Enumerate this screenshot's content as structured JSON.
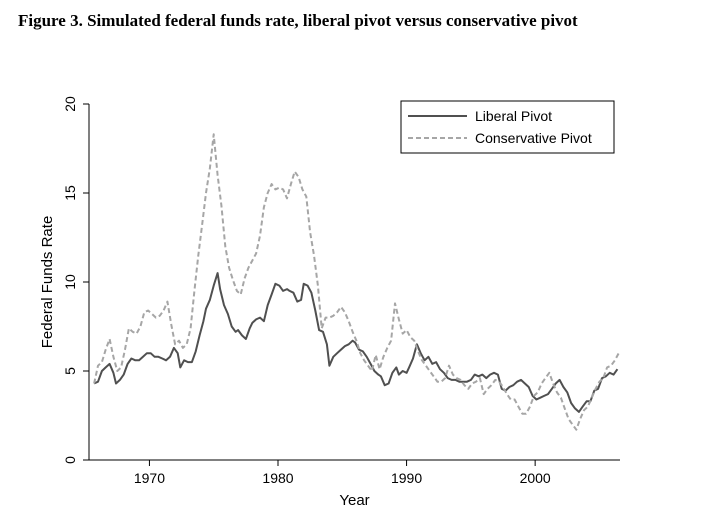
{
  "figure": {
    "title": "Figure 3.  Simulated federal funds rate, liberal pivot versus conservative pivot"
  },
  "chart_data": {
    "type": "line",
    "xlabel": "Year",
    "ylabel": "Federal Funds Rate",
    "xlim": [
      1965.3,
      2006.6
    ],
    "ylim": [
      0,
      20
    ],
    "xticks": [
      1970,
      1980,
      1990,
      2000
    ],
    "yticks": [
      0,
      5,
      10,
      15,
      20
    ],
    "grid": false,
    "legend_position": "top-right",
    "series": [
      {
        "name": "Liberal Pivot",
        "color": "#505050",
        "style": "solid",
        "points": [
          [
            1965.7,
            4.3
          ],
          [
            1966.0,
            4.4
          ],
          [
            1966.3,
            5.0
          ],
          [
            1966.6,
            5.2
          ],
          [
            1966.9,
            5.4
          ],
          [
            1967.2,
            4.9
          ],
          [
            1967.4,
            4.3
          ],
          [
            1967.7,
            4.5
          ],
          [
            1968.0,
            4.8
          ],
          [
            1968.3,
            5.4
          ],
          [
            1968.6,
            5.7
          ],
          [
            1968.9,
            5.6
          ],
          [
            1969.2,
            5.6
          ],
          [
            1969.5,
            5.8
          ],
          [
            1969.8,
            6.0
          ],
          [
            1970.1,
            6.0
          ],
          [
            1970.4,
            5.8
          ],
          [
            1970.7,
            5.8
          ],
          [
            1971.0,
            5.7
          ],
          [
            1971.3,
            5.6
          ],
          [
            1971.6,
            5.8
          ],
          [
            1971.9,
            6.3
          ],
          [
            1972.2,
            6.0
          ],
          [
            1972.4,
            5.2
          ],
          [
            1972.7,
            5.6
          ],
          [
            1973.0,
            5.5
          ],
          [
            1973.3,
            5.5
          ],
          [
            1973.6,
            6.1
          ],
          [
            1973.9,
            7.0
          ],
          [
            1974.2,
            7.8
          ],
          [
            1974.4,
            8.5
          ],
          [
            1974.7,
            9.0
          ],
          [
            1975.0,
            9.8
          ],
          [
            1975.3,
            10.5
          ],
          [
            1975.5,
            9.6
          ],
          [
            1975.8,
            8.7
          ],
          [
            1976.1,
            8.2
          ],
          [
            1976.4,
            7.5
          ],
          [
            1976.7,
            7.2
          ],
          [
            1976.9,
            7.3
          ],
          [
            1977.2,
            7.0
          ],
          [
            1977.5,
            6.8
          ],
          [
            1977.8,
            7.4
          ],
          [
            1978.0,
            7.7
          ],
          [
            1978.3,
            7.9
          ],
          [
            1978.6,
            8.0
          ],
          [
            1978.9,
            7.8
          ],
          [
            1979.2,
            8.7
          ],
          [
            1979.5,
            9.3
          ],
          [
            1979.8,
            9.9
          ],
          [
            1980.1,
            9.8
          ],
          [
            1980.4,
            9.5
          ],
          [
            1980.7,
            9.6
          ],
          [
            1980.9,
            9.5
          ],
          [
            1981.2,
            9.4
          ],
          [
            1981.5,
            8.9
          ],
          [
            1981.8,
            9.0
          ],
          [
            1982.0,
            9.9
          ],
          [
            1982.3,
            9.8
          ],
          [
            1982.6,
            9.4
          ],
          [
            1982.9,
            8.4
          ],
          [
            1983.2,
            7.3
          ],
          [
            1983.5,
            7.2
          ],
          [
            1983.8,
            6.5
          ],
          [
            1984.0,
            5.3
          ],
          [
            1984.3,
            5.8
          ],
          [
            1984.6,
            6.0
          ],
          [
            1984.9,
            6.2
          ],
          [
            1985.2,
            6.4
          ],
          [
            1985.5,
            6.5
          ],
          [
            1985.8,
            6.7
          ],
          [
            1986.0,
            6.6
          ],
          [
            1986.3,
            6.2
          ],
          [
            1986.6,
            6.1
          ],
          [
            1986.9,
            5.8
          ],
          [
            1987.2,
            5.4
          ],
          [
            1987.5,
            5.0
          ],
          [
            1987.8,
            4.8
          ],
          [
            1988.0,
            4.7
          ],
          [
            1988.3,
            4.2
          ],
          [
            1988.6,
            4.3
          ],
          [
            1988.9,
            4.9
          ],
          [
            1989.2,
            5.2
          ],
          [
            1989.4,
            4.8
          ],
          [
            1989.7,
            5.0
          ],
          [
            1990.0,
            4.9
          ],
          [
            1990.2,
            5.2
          ],
          [
            1990.5,
            5.7
          ],
          [
            1990.8,
            6.5
          ],
          [
            1991.1,
            6.0
          ],
          [
            1991.4,
            5.6
          ],
          [
            1991.7,
            5.8
          ],
          [
            1992.0,
            5.4
          ],
          [
            1992.3,
            5.5
          ],
          [
            1992.6,
            5.1
          ],
          [
            1992.9,
            4.9
          ],
          [
            1993.2,
            4.6
          ],
          [
            1993.5,
            4.5
          ],
          [
            1993.8,
            4.5
          ],
          [
            1994.1,
            4.4
          ],
          [
            1994.4,
            4.4
          ],
          [
            1994.7,
            4.4
          ],
          [
            1995.0,
            4.5
          ],
          [
            1995.3,
            4.8
          ],
          [
            1995.6,
            4.7
          ],
          [
            1995.9,
            4.8
          ],
          [
            1996.2,
            4.6
          ],
          [
            1996.5,
            4.8
          ],
          [
            1996.8,
            4.9
          ],
          [
            1997.1,
            4.8
          ],
          [
            1997.4,
            4.0
          ],
          [
            1997.7,
            3.9
          ],
          [
            1998.0,
            4.1
          ],
          [
            1998.3,
            4.2
          ],
          [
            1998.6,
            4.4
          ],
          [
            1998.9,
            4.5
          ],
          [
            1999.2,
            4.3
          ],
          [
            1999.5,
            4.1
          ],
          [
            1999.8,
            3.6
          ],
          [
            2000.1,
            3.4
          ],
          [
            2000.4,
            3.5
          ],
          [
            2000.7,
            3.6
          ],
          [
            2001.0,
            3.7
          ],
          [
            2001.3,
            4.0
          ],
          [
            2001.6,
            4.3
          ],
          [
            2001.9,
            4.5
          ],
          [
            2002.2,
            4.1
          ],
          [
            2002.5,
            3.8
          ],
          [
            2002.8,
            3.2
          ],
          [
            2003.1,
            2.9
          ],
          [
            2003.4,
            2.7
          ],
          [
            2003.7,
            3.0
          ],
          [
            2004.0,
            3.3
          ],
          [
            2004.3,
            3.3
          ],
          [
            2004.6,
            3.9
          ],
          [
            2004.9,
            4.0
          ],
          [
            2005.2,
            4.6
          ],
          [
            2005.5,
            4.7
          ],
          [
            2005.8,
            4.9
          ],
          [
            2006.1,
            4.8
          ],
          [
            2006.4,
            5.1
          ]
        ]
      },
      {
        "name": "Conservative Pivot",
        "color": "#a6a6a6",
        "style": "dashed",
        "points": [
          [
            1965.7,
            4.3
          ],
          [
            1966.0,
            5.3
          ],
          [
            1966.3,
            5.5
          ],
          [
            1966.6,
            6.2
          ],
          [
            1966.9,
            6.8
          ],
          [
            1967.2,
            5.8
          ],
          [
            1967.5,
            5.0
          ],
          [
            1967.8,
            5.2
          ],
          [
            1968.1,
            6.2
          ],
          [
            1968.4,
            7.4
          ],
          [
            1968.7,
            7.2
          ],
          [
            1969.0,
            7.1
          ],
          [
            1969.3,
            7.5
          ],
          [
            1969.6,
            8.3
          ],
          [
            1969.9,
            8.4
          ],
          [
            1970.2,
            8.2
          ],
          [
            1970.5,
            8.0
          ],
          [
            1970.8,
            8.1
          ],
          [
            1971.1,
            8.4
          ],
          [
            1971.4,
            8.9
          ],
          [
            1971.7,
            7.6
          ],
          [
            1972.0,
            6.5
          ],
          [
            1972.3,
            6.7
          ],
          [
            1972.6,
            6.3
          ],
          [
            1972.9,
            6.5
          ],
          [
            1973.2,
            7.4
          ],
          [
            1973.5,
            9.5
          ],
          [
            1973.8,
            11.5
          ],
          [
            1974.1,
            13.2
          ],
          [
            1974.4,
            15.0
          ],
          [
            1974.7,
            16.4
          ],
          [
            1975.0,
            18.3
          ],
          [
            1975.3,
            16.0
          ],
          [
            1975.6,
            14.3
          ],
          [
            1975.9,
            12.0
          ],
          [
            1976.2,
            10.8
          ],
          [
            1976.5,
            10.1
          ],
          [
            1976.8,
            9.5
          ],
          [
            1977.1,
            9.3
          ],
          [
            1977.4,
            10.2
          ],
          [
            1977.7,
            10.8
          ],
          [
            1978.0,
            11.2
          ],
          [
            1978.3,
            11.6
          ],
          [
            1978.6,
            12.6
          ],
          [
            1978.9,
            14.2
          ],
          [
            1979.2,
            15.0
          ],
          [
            1979.5,
            15.5
          ],
          [
            1979.8,
            15.2
          ],
          [
            1980.1,
            15.3
          ],
          [
            1980.4,
            15.2
          ],
          [
            1980.7,
            14.7
          ],
          [
            1981.0,
            15.5
          ],
          [
            1981.3,
            16.2
          ],
          [
            1981.6,
            15.9
          ],
          [
            1981.9,
            15.2
          ],
          [
            1982.2,
            14.8
          ],
          [
            1982.5,
            12.8
          ],
          [
            1982.8,
            11.5
          ],
          [
            1983.1,
            9.8
          ],
          [
            1983.4,
            7.4
          ],
          [
            1983.7,
            8.0
          ],
          [
            1984.0,
            8.0
          ],
          [
            1984.3,
            8.1
          ],
          [
            1984.6,
            8.3
          ],
          [
            1984.9,
            8.6
          ],
          [
            1985.2,
            8.3
          ],
          [
            1985.5,
            7.8
          ],
          [
            1985.8,
            7.2
          ],
          [
            1986.1,
            6.7
          ],
          [
            1986.4,
            6.0
          ],
          [
            1986.7,
            5.6
          ],
          [
            1987.0,
            5.3
          ],
          [
            1987.3,
            5.0
          ],
          [
            1987.6,
            5.9
          ],
          [
            1987.9,
            5.1
          ],
          [
            1988.2,
            5.8
          ],
          [
            1988.5,
            6.3
          ],
          [
            1988.8,
            6.7
          ],
          [
            1989.1,
            8.8
          ],
          [
            1989.4,
            7.9
          ],
          [
            1989.7,
            7.1
          ],
          [
            1990.0,
            7.3
          ],
          [
            1990.3,
            6.9
          ],
          [
            1990.6,
            6.7
          ],
          [
            1990.9,
            6.1
          ],
          [
            1991.2,
            5.6
          ],
          [
            1991.5,
            5.3
          ],
          [
            1991.8,
            5.0
          ],
          [
            1992.1,
            4.7
          ],
          [
            1992.4,
            4.4
          ],
          [
            1992.7,
            4.4
          ],
          [
            1993.0,
            4.6
          ],
          [
            1993.3,
            5.3
          ],
          [
            1993.6,
            4.8
          ],
          [
            1993.9,
            4.6
          ],
          [
            1994.2,
            4.5
          ],
          [
            1994.5,
            4.2
          ],
          [
            1994.8,
            4.0
          ],
          [
            1995.1,
            4.3
          ],
          [
            1995.4,
            4.4
          ],
          [
            1995.7,
            4.6
          ],
          [
            1996.0,
            3.7
          ],
          [
            1996.3,
            4.0
          ],
          [
            1996.6,
            4.2
          ],
          [
            1996.9,
            4.5
          ],
          [
            1997.2,
            4.4
          ],
          [
            1997.5,
            4.1
          ],
          [
            1997.8,
            3.7
          ],
          [
            1998.1,
            3.4
          ],
          [
            1998.4,
            3.4
          ],
          [
            1998.7,
            3.0
          ],
          [
            1999.0,
            2.6
          ],
          [
            1999.3,
            2.6
          ],
          [
            1999.6,
            3.0
          ],
          [
            1999.9,
            3.6
          ],
          [
            2000.2,
            3.8
          ],
          [
            2000.5,
            4.3
          ],
          [
            2000.8,
            4.6
          ],
          [
            2001.1,
            4.9
          ],
          [
            2001.4,
            4.3
          ],
          [
            2001.7,
            3.8
          ],
          [
            2002.0,
            3.5
          ],
          [
            2002.3,
            2.9
          ],
          [
            2002.6,
            2.3
          ],
          [
            2002.9,
            2.0
          ],
          [
            2003.2,
            1.7
          ],
          [
            2003.5,
            2.3
          ],
          [
            2003.8,
            2.8
          ],
          [
            2004.1,
            3.0
          ],
          [
            2004.4,
            3.5
          ],
          [
            2004.7,
            4.0
          ],
          [
            2005.0,
            4.4
          ],
          [
            2005.3,
            4.6
          ],
          [
            2005.6,
            5.2
          ],
          [
            2005.9,
            5.3
          ],
          [
            2006.2,
            5.6
          ],
          [
            2006.5,
            6.0
          ]
        ]
      }
    ]
  }
}
